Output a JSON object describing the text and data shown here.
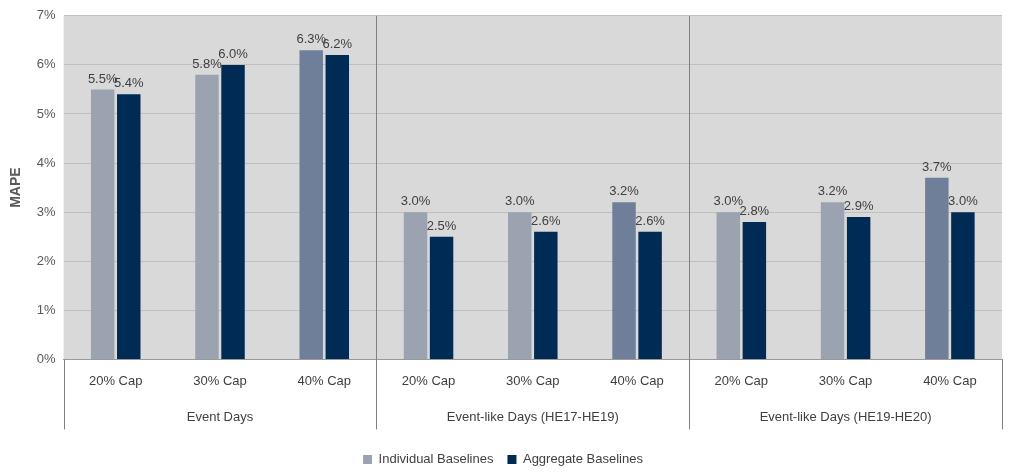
{
  "chart_data": {
    "type": "bar",
    "ylabel": "MAPE",
    "categories": [
      "20% Cap",
      "30% Cap",
      "40% Cap",
      "20% Cap",
      "30% Cap",
      "40% Cap",
      "20% Cap",
      "30% Cap",
      "40% Cap"
    ],
    "series": [
      {
        "name": "Individual Baselines",
        "color": "#9ba3b0",
        "colors": [
          "#9ba3b0",
          "#9ba3b0",
          "#6f7f99",
          "#9ba3b0",
          "#9ba3b0",
          "#6f7f99",
          "#9ba3b0",
          "#9ba3b0",
          "#6f7f99"
        ],
        "values": [
          5.5,
          5.8,
          6.3,
          3.0,
          3.0,
          3.2,
          3.0,
          3.2,
          3.7
        ],
        "value_labels": [
          "5.5%",
          "5.8%",
          "6.3%",
          "3.0%",
          "3.0%",
          "3.2%",
          "3.0%",
          "3.2%",
          "3.7%"
        ]
      },
      {
        "name": "Aggregate Baselines",
        "color": "#002b55",
        "values": [
          5.4,
          6.0,
          6.2,
          2.5,
          2.6,
          2.6,
          2.8,
          2.9,
          3.0
        ],
        "value_labels": [
          "5.4%",
          "6.0%",
          "6.2%",
          "2.5%",
          "2.6%",
          "2.6%",
          "2.8%",
          "2.9%",
          "3.0%"
        ]
      }
    ],
    "ylim": [
      0,
      7
    ],
    "yticks": [
      {
        "value": 0,
        "label": "0%"
      },
      {
        "value": 1,
        "label": "1%"
      },
      {
        "value": 2,
        "label": "2%"
      },
      {
        "value": 3,
        "label": "3%"
      },
      {
        "value": 4,
        "label": "4%"
      },
      {
        "value": 5,
        "label": "5%"
      },
      {
        "value": 6,
        "label": "6%"
      },
      {
        "value": 7,
        "label": "7%"
      }
    ],
    "annotations": [
      "Event Days",
      "Event-like Days (HE17-HE19)",
      "Event-like Days (HE19-HE20)"
    ],
    "grid": "y",
    "legend": "bottom"
  }
}
